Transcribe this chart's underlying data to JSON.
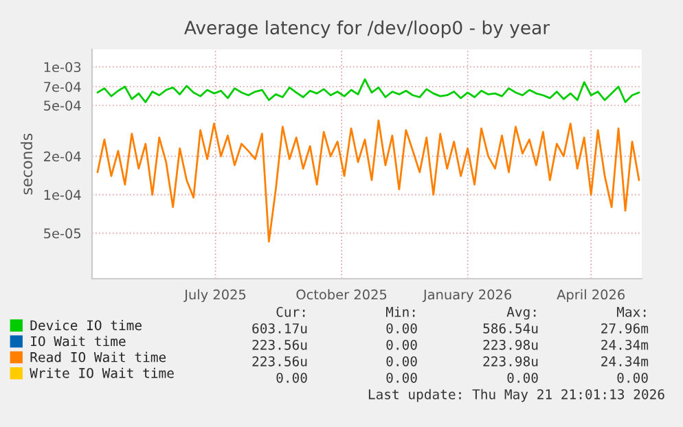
{
  "chart_data": {
    "type": "line",
    "title": "Average latency for /dev/loop0 - by year",
    "ylabel": "seconds",
    "x": [
      "2025-04-06",
      "2025-04-11",
      "2025-04-16",
      "2025-04-21",
      "2025-04-26",
      "2025-05-01",
      "2025-05-06",
      "2025-05-11",
      "2025-05-16",
      "2025-05-21",
      "2025-05-26",
      "2025-05-31",
      "2025-06-05",
      "2025-06-10",
      "2025-06-15",
      "2025-06-20",
      "2025-06-25",
      "2025-06-30",
      "2025-07-05",
      "2025-07-10",
      "2025-07-15",
      "2025-07-20",
      "2025-07-25",
      "2025-07-30",
      "2025-08-04",
      "2025-08-09",
      "2025-08-14",
      "2025-08-19",
      "2025-08-24",
      "2025-08-29",
      "2025-09-03",
      "2025-09-08",
      "2025-09-13",
      "2025-09-18",
      "2025-09-23",
      "2025-09-28",
      "2025-10-03",
      "2025-10-08",
      "2025-10-13",
      "2025-10-18",
      "2025-10-23",
      "2025-10-28",
      "2025-11-02",
      "2025-11-07",
      "2025-11-12",
      "2025-11-17",
      "2025-11-22",
      "2025-11-27",
      "2025-12-02",
      "2025-12-07",
      "2025-12-12",
      "2025-12-17",
      "2025-12-22",
      "2025-12-27",
      "2026-01-01",
      "2026-01-06",
      "2026-01-11",
      "2026-01-16",
      "2026-01-21",
      "2026-01-26",
      "2026-01-31",
      "2026-02-05",
      "2026-02-10",
      "2026-02-15",
      "2026-02-20",
      "2026-02-25",
      "2026-03-02",
      "2026-03-07",
      "2026-03-12",
      "2026-03-17",
      "2026-03-22",
      "2026-03-27",
      "2026-04-01",
      "2026-04-06",
      "2026-04-11",
      "2026-04-16",
      "2026-04-21",
      "2026-04-26",
      "2026-05-01",
      "2026-05-06"
    ],
    "series": [
      {
        "name": "Device IO time",
        "color": "#00cc00",
        "values": [
          0.00063,
          0.00068,
          0.00059,
          0.00065,
          0.0007,
          0.00056,
          0.00062,
          0.00053,
          0.00064,
          0.0006,
          0.00066,
          0.00069,
          0.00061,
          0.00071,
          0.00063,
          0.00059,
          0.00066,
          0.00062,
          0.00065,
          0.00057,
          0.00068,
          0.00063,
          0.0006,
          0.00064,
          0.00066,
          0.00055,
          0.00061,
          0.00058,
          0.00069,
          0.00063,
          0.00058,
          0.00065,
          0.00062,
          0.00067,
          0.0006,
          0.00064,
          0.00059,
          0.00066,
          0.00061,
          0.0008,
          0.00063,
          0.00069,
          0.00058,
          0.00064,
          0.00061,
          0.00065,
          0.0006,
          0.00058,
          0.00067,
          0.00062,
          0.00059,
          0.0006,
          0.00064,
          0.00057,
          0.00063,
          0.00058,
          0.00065,
          0.00061,
          0.00062,
          0.00059,
          0.00068,
          0.00063,
          0.0006,
          0.00066,
          0.00062,
          0.0006,
          0.00057,
          0.00064,
          0.00056,
          0.00062,
          0.00055,
          0.00076,
          0.0006,
          0.00064,
          0.00055,
          0.00062,
          0.0007,
          0.00053,
          0.0006,
          0.00063
        ]
      },
      {
        "name": "IO Wait time",
        "color": "#0066b3",
        "values": [
          null,
          null,
          null,
          null,
          null,
          null,
          null,
          null,
          null,
          null,
          null,
          null,
          null,
          null,
          null,
          null,
          null,
          null,
          null,
          null,
          null,
          null,
          null,
          null,
          null,
          null,
          null,
          null,
          null,
          null,
          null,
          null,
          null,
          null,
          null,
          null,
          null,
          null,
          null,
          null,
          null,
          null,
          null,
          null,
          null,
          null,
          null,
          null,
          null,
          null,
          null,
          null,
          null,
          null,
          null,
          null,
          null,
          null,
          null,
          null,
          null,
          null,
          null,
          null,
          null,
          null,
          null,
          null,
          null,
          null,
          null,
          null,
          null,
          null,
          null,
          null,
          null,
          null,
          null,
          null
        ]
      },
      {
        "name": "Read IO Wait time",
        "color": "#ff8000",
        "values": [
          0.00015,
          0.00027,
          0.00014,
          0.00022,
          0.00012,
          0.0003,
          0.00016,
          0.00025,
          0.0001,
          0.00028,
          0.00018,
          8e-05,
          0.00023,
          0.00013,
          9.5e-05,
          0.00032,
          0.00019,
          0.00036,
          0.0002,
          0.00029,
          0.00017,
          0.00025,
          0.00022,
          0.00019,
          0.0003,
          4.3e-05,
          0.00011,
          0.00034,
          0.00019,
          0.00028,
          0.00016,
          0.00024,
          0.00012,
          0.00031,
          0.0002,
          0.00026,
          0.00014,
          0.00033,
          0.00018,
          0.00027,
          0.00013,
          0.00038,
          0.00017,
          0.00029,
          0.00011,
          0.00032,
          0.00022,
          0.00015,
          0.00028,
          0.0001,
          0.0003,
          0.00016,
          0.00026,
          0.00014,
          0.00023,
          0.00012,
          0.00033,
          0.0002,
          0.00016,
          0.00029,
          0.00015,
          0.00034,
          0.00021,
          0.00027,
          0.00017,
          0.00031,
          0.00013,
          0.00025,
          0.0002,
          0.00036,
          0.00016,
          0.00028,
          0.0001,
          0.00032,
          0.00014,
          8e-05,
          0.00033,
          7.5e-05,
          0.00026,
          0.00013
        ]
      },
      {
        "name": "Write IO Wait time",
        "color": "#ffcc00",
        "values": [
          null,
          null,
          null,
          null,
          null,
          null,
          null,
          null,
          null,
          null,
          null,
          null,
          null,
          null,
          null,
          null,
          null,
          null,
          null,
          null,
          null,
          null,
          null,
          null,
          null,
          null,
          null,
          null,
          null,
          null,
          null,
          null,
          null,
          null,
          null,
          null,
          null,
          null,
          null,
          null,
          null,
          null,
          null,
          null,
          null,
          null,
          null,
          null,
          null,
          null,
          null,
          null,
          null,
          null,
          null,
          null,
          null,
          null,
          null,
          null,
          null,
          null,
          null,
          null,
          null,
          null,
          null,
          null,
          null,
          null,
          null,
          null,
          null,
          null,
          null,
          null,
          null,
          null,
          null,
          null
        ]
      }
    ],
    "log": "y",
    "ylim": [
      2.2e-05,
      0.00137
    ],
    "yticks": [
      {
        "value": 5e-05,
        "label": "5e-05"
      },
      {
        "value": 0.0001,
        "label": "1e-04"
      },
      {
        "value": 0.0002,
        "label": "2e-04"
      },
      {
        "value": 0.0005,
        "label": "5e-04"
      },
      {
        "value": 0.0007,
        "label": "7e-04"
      },
      {
        "value": 0.001,
        "label": "1e-03"
      }
    ],
    "xlim": [
      "2025-04-02",
      "2026-05-08"
    ],
    "xticks": [
      {
        "value": "2025-07-01",
        "label": "July 2025"
      },
      {
        "value": "2025-10-01",
        "label": "October 2025"
      },
      {
        "value": "2026-01-01",
        "label": "January 2026"
      },
      {
        "value": "2026-04-01",
        "label": "April 2026"
      }
    ],
    "grid": true,
    "legend": "bottom",
    "annotations": [
      "Cur:",
      "Min:",
      "Avg:",
      "Max:",
      "603.17u",
      "0.00",
      "586.54u",
      "27.96m",
      "223.56u",
      "0.00",
      "223.98u",
      "24.34m",
      "223.56u",
      "0.00",
      "223.98u",
      "24.34m",
      "0.00",
      "0.00",
      "0.00",
      "0.00",
      "Last update: Thu May 21 21:01:13 2026"
    ]
  }
}
